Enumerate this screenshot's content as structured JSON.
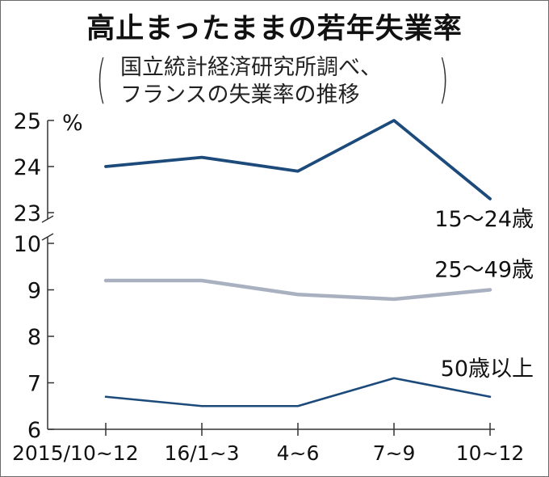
{
  "chart_data": {
    "type": "line",
    "title": "高止まったままの若年失業率",
    "subtitle_lines": [
      "国立統計経済研究所調べ、",
      "フランスの失業率の推移"
    ],
    "ylabel": "%",
    "categories": [
      "2015/10~12",
      "16/1~3",
      "4~6",
      "7~9",
      "10~12"
    ],
    "axis_break": true,
    "upper_panel": {
      "ylim": [
        23,
        25
      ],
      "ticks": [
        "23",
        "24",
        "25"
      ]
    },
    "lower_panel": {
      "ylim": [
        6,
        10
      ],
      "ticks": [
        "6",
        "7",
        "8",
        "9",
        "10"
      ]
    },
    "series": [
      {
        "name": "15～24歳",
        "panel": "upper",
        "color": "#1c4a7a",
        "values": [
          24.0,
          24.2,
          23.9,
          25.0,
          23.3
        ]
      },
      {
        "name": "25～49歳",
        "panel": "lower",
        "color": "#a9b1c1",
        "values": [
          9.2,
          9.2,
          8.9,
          8.8,
          9.0
        ]
      },
      {
        "name": "50歳以上",
        "panel": "lower",
        "color": "#1c4a7a",
        "values": [
          6.7,
          6.5,
          6.5,
          7.1,
          6.7
        ]
      }
    ]
  }
}
